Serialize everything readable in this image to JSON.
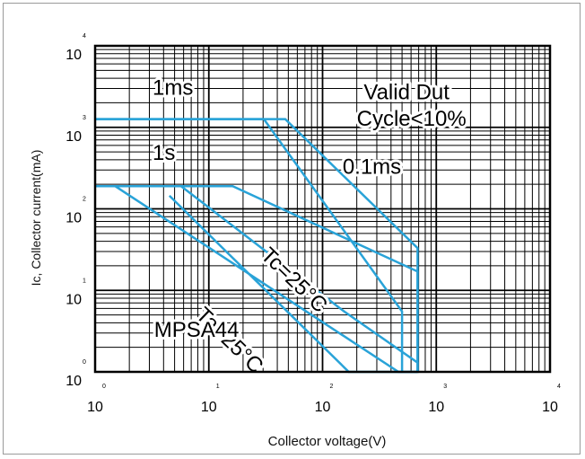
{
  "chart_data": {
    "type": "line",
    "title": "",
    "xlabel": "Collector voltage(V)",
    "ylabel": "Ic, Collector current(mA)",
    "x_scale": "log",
    "y_scale": "log",
    "xlim": [
      1,
      10000
    ],
    "ylim": [
      1,
      10000
    ],
    "x_ticks": [
      {
        "base": "10",
        "exp": "0"
      },
      {
        "base": "10",
        "exp": "1"
      },
      {
        "base": "10",
        "exp": "2"
      },
      {
        "base": "10",
        "exp": "3"
      },
      {
        "base": "10",
        "exp": "4"
      }
    ],
    "y_ticks": [
      {
        "base": "10",
        "exp": "0"
      },
      {
        "base": "10",
        "exp": "1"
      },
      {
        "base": "10",
        "exp": "2"
      },
      {
        "base": "10",
        "exp": "3"
      },
      {
        "base": "10",
        "exp": "4"
      }
    ],
    "grid": true,
    "line_color": "#29a3d8",
    "series": [
      {
        "x": [
          1,
          30.5,
          500,
          500
        ],
        "y": [
          1260,
          1260,
          5.5,
          1
        ]
      },
      {
        "x": [
          1,
          47,
          685,
          685
        ],
        "y": [
          1260,
          1260,
          33,
          1
        ]
      },
      {
        "x": [
          1,
          16.2,
          685,
          685,
          640
        ],
        "y": [
          190,
          190,
          17,
          1,
          1
        ]
      },
      {
        "x": [
          1.5,
          5.7,
          155,
          685,
          685
        ],
        "y": [
          190,
          190,
          5.5,
          1.3,
          1
        ]
      },
      {
        "x": [
          1.5,
          465,
          685
        ],
        "y": [
          190,
          1,
          1
        ]
      },
      {
        "x": [
          4.5,
          170,
          685
        ],
        "y": [
          145,
          1,
          1
        ]
      }
    ],
    "annotations": [
      {
        "text": "Valid Dut",
        "x": 230,
        "y": 2200
      },
      {
        "text": "Cycle<10%",
        "x": 200,
        "y": 1050
      },
      {
        "text": "1ms",
        "x": 3.2,
        "y": 2500
      },
      {
        "text": "1s",
        "x": 3.2,
        "y": 400
      },
      {
        "text": "0.1ms",
        "x": 150,
        "y": 270
      },
      {
        "text": "Tc=25°C",
        "x": 28,
        "y": 26,
        "angle": 44
      },
      {
        "text": "Ta=25°C",
        "x": 7.5,
        "y": 4.8,
        "angle": 44
      },
      {
        "text": "MPSA44",
        "x": 3.3,
        "y": 2.7
      }
    ]
  }
}
